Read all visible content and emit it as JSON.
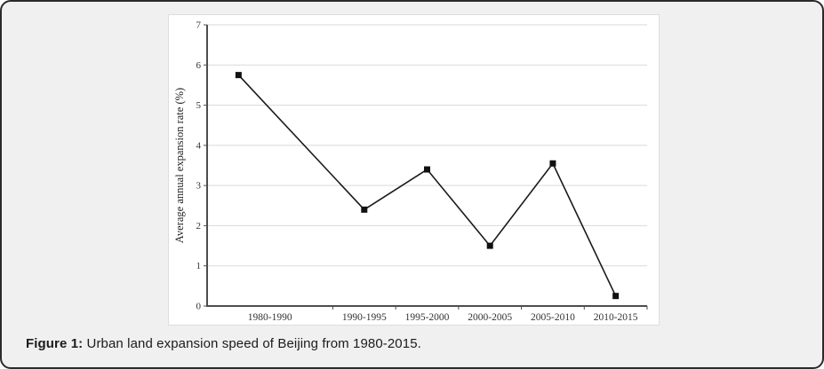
{
  "page": {
    "background_color": "#f0f0f0",
    "border_color": "#2b2b2b",
    "panel_color": "#ffffff"
  },
  "caption": {
    "prefix": "Figure 1:",
    "text": " Urban land expansion speed of Beijing from 1980-2015."
  },
  "chart_data": {
    "type": "line",
    "title": "",
    "categories": [
      "1980-1990",
      "1990-1995",
      "1995-2000",
      "2000-2005",
      "2005-2010",
      "2010-2015"
    ],
    "values": [
      5.75,
      2.4,
      3.4,
      1.5,
      3.55,
      0.25
    ],
    "xlabel": "",
    "ylabel": "Average annual expansion rate (%)",
    "ylim": [
      0,
      7
    ],
    "yticks": [
      0,
      1,
      2,
      3,
      4,
      5,
      6,
      7
    ],
    "grid": "horizontal",
    "legend": "none",
    "marker": "square",
    "colors": {
      "line": "#1a1a1a",
      "marker": "#111111",
      "grid": "#d9d9d9",
      "axis": "#4d4d4d",
      "tick_label": "#333333",
      "axis_title": "#222222"
    },
    "layout_hints": {
      "slot_count": 7,
      "marker_slots": [
        1,
        3,
        4,
        5,
        6,
        7
      ],
      "label_slots": [
        1.5,
        3,
        4,
        5,
        6,
        7
      ],
      "boundary_tick_slots": [
        2,
        3,
        4,
        5,
        6,
        7
      ]
    }
  }
}
